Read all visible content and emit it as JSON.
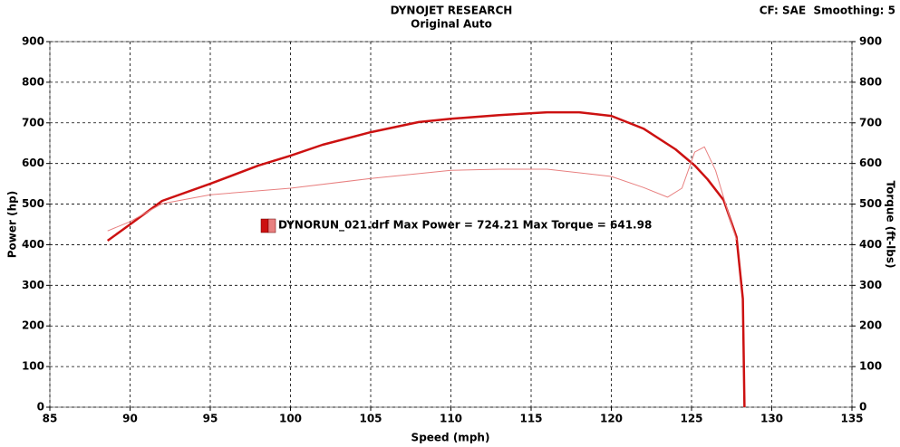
{
  "chart_data": {
    "type": "line",
    "title": "DYNOJET RESEARCH",
    "subtitle": "Original Auto",
    "header_note": "CF: SAE  Smoothing: 5",
    "x_label": "Speed (mph)",
    "y_label": "Power (hp)",
    "y2_label": "Torque (ft-lbs)",
    "legend_text": "DYNORUN_021.drf Max Power = 724.21 Max Torque = 641.98",
    "xlim": [
      85,
      135
    ],
    "xticks": [
      85,
      90,
      95,
      100,
      105,
      110,
      115,
      120,
      125,
      130,
      135
    ],
    "ylim": [
      0,
      900
    ],
    "yticks": [
      0,
      100,
      200,
      300,
      400,
      500,
      600,
      700,
      800,
      900
    ],
    "y2lim": [
      0,
      900
    ],
    "y2ticks": [
      0,
      100,
      200,
      300,
      400,
      500,
      600,
      700,
      800,
      900
    ],
    "grid": true,
    "series": [
      {
        "color": "#cc1111",
        "width": 2.5,
        "x": [
          88.6,
          90,
          92,
          95,
          98,
          100,
          102,
          105,
          108,
          110,
          113,
          116,
          118,
          120,
          122,
          124,
          125.2,
          126,
          127,
          127.8,
          128.2,
          128.3
        ],
        "values": [
          410,
          450,
          508,
          550,
          595,
          619,
          646,
          677,
          702,
          710,
          719,
          726,
          726,
          717,
          686,
          635,
          595,
          561,
          510,
          419,
          267,
          0
        ]
      },
      {
        "color": "#e88080",
        "width": 1,
        "axis": "y2",
        "x": [
          88.6,
          90,
          92,
          95,
          100,
          105,
          110,
          113,
          116,
          120,
          122,
          123.5,
          124.4,
          125.2,
          125.8,
          126.5,
          127.5,
          127.8
        ],
        "values": [
          434,
          457,
          501,
          523,
          539,
          563,
          583,
          586,
          586,
          568,
          541,
          517,
          539,
          628,
          641,
          583,
          450,
          412
        ]
      }
    ]
  }
}
